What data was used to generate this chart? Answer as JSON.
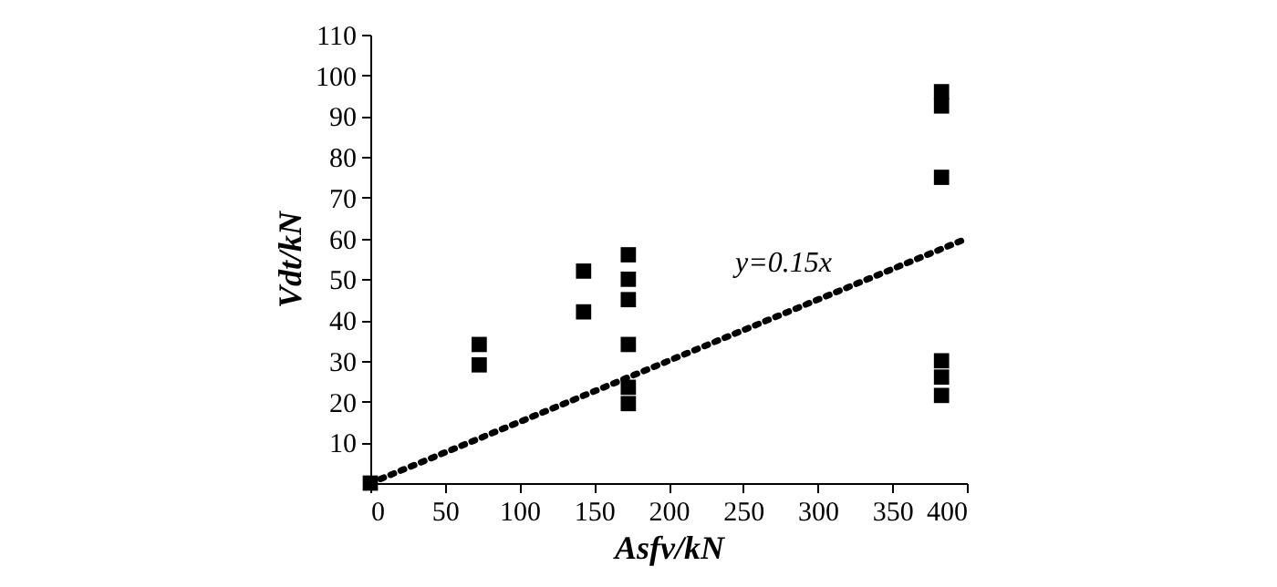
{
  "chart_data": {
    "type": "scatter",
    "xlabel": "Asfv/kN",
    "ylabel": "Vdt/kN",
    "xlim": [
      0,
      400
    ],
    "xticks": [
      0,
      50,
      100,
      150,
      200,
      250,
      300,
      350,
      400
    ],
    "ylim": [
      0,
      110
    ],
    "yticks": [
      10,
      20,
      30,
      40,
      50,
      60,
      70,
      80,
      90,
      100,
      110
    ],
    "grid": false,
    "series": [
      {
        "marker": "square",
        "color": "#000000",
        "x": [
          0,
          73,
          73,
          143,
          143,
          173,
          173,
          173,
          173,
          173,
          173,
          383,
          383,
          383,
          383,
          383,
          383
        ],
        "values": [
          0,
          34,
          29,
          52,
          42,
          56,
          50,
          45,
          34,
          23.5,
          19.5,
          96,
          92.5,
          75,
          30,
          26,
          21.5
        ]
      },
      {
        "type": "line",
        "marker": "none",
        "line_style": "dotted",
        "color": "#000000",
        "x": [
          0,
          400
        ],
        "values": [
          0,
          60
        ]
      }
    ],
    "annotations": [
      "y=0.15x"
    ]
  }
}
